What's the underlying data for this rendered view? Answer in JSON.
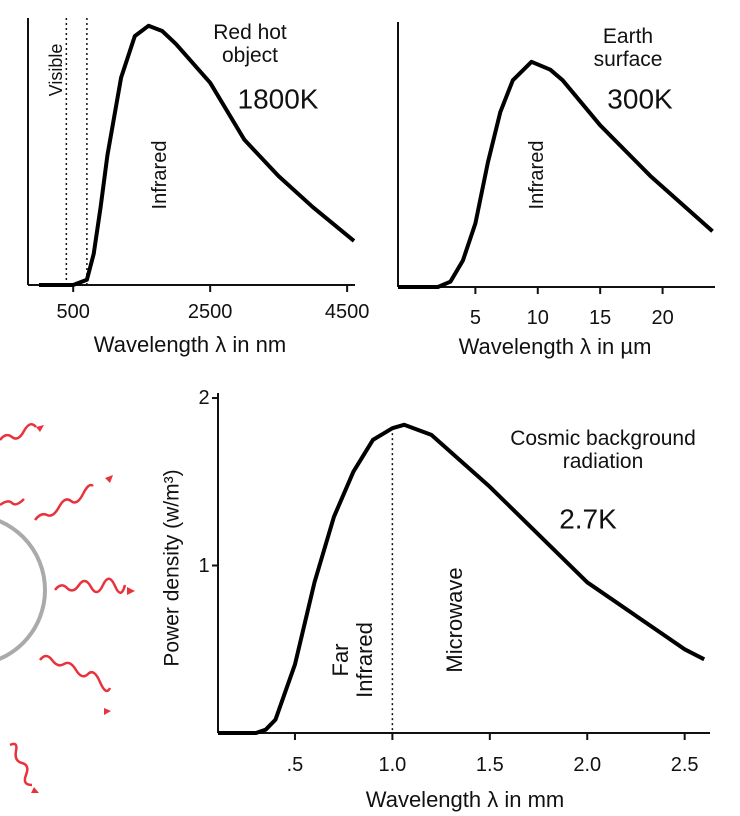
{
  "chart_data": [
    {
      "type": "line",
      "title": "Red hot object",
      "subtitle": "1800K",
      "xlabel": "Wavelength λ in nm",
      "x": [
        0,
        500,
        700,
        800,
        900,
        1000,
        1200,
        1400,
        1600,
        1800,
        2000,
        2500,
        3000,
        3500,
        4000,
        4600
      ],
      "values": [
        0,
        0,
        0.02,
        0.12,
        0.3,
        0.5,
        0.8,
        0.96,
        1,
        0.98,
        0.93,
        0.78,
        0.56,
        0.42,
        0.3,
        0.17
      ],
      "color": "#000000",
      "xlim": [
        -160,
        4615
      ],
      "ylim": [
        0,
        1.03
      ],
      "xticks": [
        500,
        2500,
        4500
      ],
      "vlines": [
        400,
        700
      ],
      "annotations": [
        "Visible",
        "Infrared"
      ]
    },
    {
      "type": "line",
      "title": "Earth surface",
      "subtitle": "300K",
      "xlabel": "Wavelength λ in µm",
      "x": [
        -1.2,
        2,
        3,
        4,
        5,
        6,
        7,
        8,
        9.5,
        11,
        12,
        15,
        19,
        24
      ],
      "values": [
        0,
        0,
        0.02,
        0.1,
        0.24,
        0.47,
        0.66,
        0.78,
        0.85,
        0.82,
        0.78,
        0.61,
        0.42,
        0.21
      ],
      "color": "#000000",
      "xlim": [
        -1.2,
        24.2
      ],
      "ylim": [
        0,
        1
      ],
      "xticks": [
        5,
        10,
        15,
        20
      ],
      "annotations": [
        "Infrared"
      ]
    },
    {
      "type": "line",
      "title": "Cosmic background radiation",
      "subtitle": "2.7K",
      "xlabel": "Wavelength λ in mm",
      "ylabel": "Power density (w/m³)",
      "x": [
        0.105,
        0.3,
        0.35,
        0.4,
        0.5,
        0.6,
        0.7,
        0.8,
        0.9,
        1.0,
        1.06,
        1.2,
        1.5,
        2.0,
        2.5,
        2.6
      ],
      "values": [
        0,
        0,
        0.02,
        0.08,
        0.41,
        0.9,
        1.29,
        1.56,
        1.75,
        1.82,
        1.84,
        1.78,
        1.47,
        0.9,
        0.5,
        0.44
      ],
      "color": "#000000",
      "xlim": [
        0.105,
        2.63
      ],
      "ylim": [
        0,
        2.03
      ],
      "xticks": [
        {
          "value": 0.5,
          "label": ".5"
        },
        {
          "value": 1.0,
          "label": "1.0"
        },
        {
          "value": 1.5,
          "label": "1.5"
        },
        {
          "value": 2.0,
          "label": "2.0"
        },
        {
          "value": 2.5,
          "label": "2.5"
        }
      ],
      "yticks": [
        1,
        2
      ],
      "vlines": [
        1.0
      ],
      "annotations": [
        "Far Infrared",
        "Microwave"
      ]
    }
  ]
}
